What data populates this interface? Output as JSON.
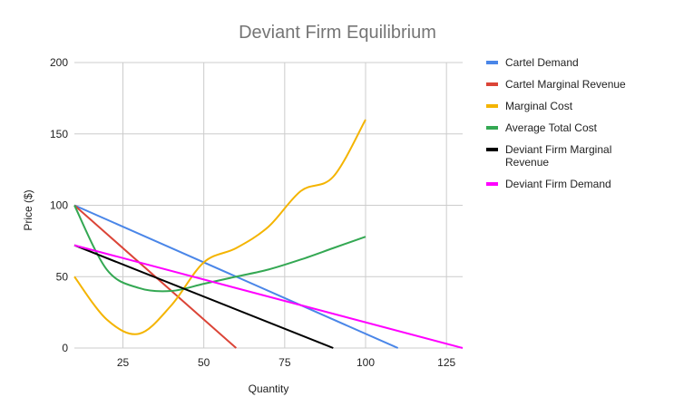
{
  "chart_data": {
    "type": "line",
    "title": "Deviant Firm Equilibrium",
    "xlabel": "Quantity",
    "ylabel": "Price ($)",
    "xlim": [
      10,
      130
    ],
    "ylim": [
      0,
      200
    ],
    "x_ticks": [
      25,
      50,
      75,
      100,
      125
    ],
    "y_ticks": [
      0,
      50,
      100,
      150,
      200
    ],
    "x_tick_labels": [
      "25",
      "50",
      "75",
      "100",
      "125"
    ],
    "y_tick_labels": [
      "0",
      "50",
      "100",
      "150",
      "200"
    ],
    "grid": true,
    "legend": "right",
    "series": [
      {
        "name": "Cartel Demand",
        "color": "#4a86e8",
        "x": [
          10,
          110
        ],
        "y": [
          100,
          0
        ],
        "smooth": false
      },
      {
        "name": "Cartel Marginal Revenue",
        "color": "#db4437",
        "x": [
          10,
          60
        ],
        "y": [
          100,
          0
        ],
        "smooth": false
      },
      {
        "name": "Marginal Cost",
        "color": "#f4b400",
        "x": [
          10,
          20,
          30,
          40,
          50,
          60,
          70,
          80,
          90,
          100
        ],
        "y": [
          50,
          20,
          10,
          30,
          60,
          70,
          85,
          110,
          120,
          160
        ],
        "smooth": true
      },
      {
        "name": "Average Total Cost",
        "color": "#34a853",
        "x": [
          10,
          20,
          30,
          40,
          50,
          60,
          70,
          80,
          90,
          100
        ],
        "y": [
          100,
          55,
          42,
          40,
          45,
          50,
          55,
          62,
          70,
          78
        ],
        "smooth": true
      },
      {
        "name": "Deviant Firm Marginal Revenue",
        "name_lines": [
          "Deviant Firm Marginal",
          "Revenue"
        ],
        "color": "#000000",
        "x": [
          10,
          90
        ],
        "y": [
          72,
          0
        ],
        "smooth": false
      },
      {
        "name": "Deviant Firm Demand",
        "color": "#ff00ff",
        "x": [
          10,
          130
        ],
        "y": [
          72,
          0
        ],
        "smooth": false
      }
    ]
  }
}
